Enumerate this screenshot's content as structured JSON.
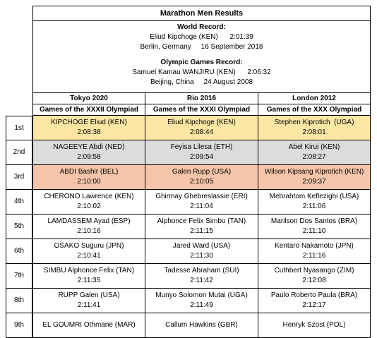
{
  "title": "Marathon Men Results",
  "world_record": {
    "heading": "World Record:",
    "line1": "Eliud Kipchoge (KEN)      2:01:39",
    "line2": "Berlin, Germany     16 September 2018"
  },
  "olympic_record": {
    "heading": "Olympic Games Record:",
    "line1": "Samuel Kamau WANJIRU (KEN)      2:06:32",
    "line2": "Beijing, China     24 August 2008"
  },
  "games": [
    {
      "name": "Tokyo 2020",
      "sub": "Games of the XXXII Olympiad"
    },
    {
      "name": "Rio 2016",
      "sub": "Games of the XXXI Olympiad"
    },
    {
      "name": "London 2012",
      "sub": "Games of the XXX Olympiad"
    }
  ],
  "rows": [
    {
      "place": "1st",
      "cells": [
        {
          "name": "KIPCHOGE Eliud (KEN)",
          "time": "2:08:38"
        },
        {
          "name": "Eliud Kipchoge (KEN)",
          "time": "2:08:44"
        },
        {
          "name": "Stephen Kiprotich  (UGA)",
          "time": "2:08:01"
        }
      ]
    },
    {
      "place": "2nd",
      "cells": [
        {
          "name": "NAGEEYE Abdi (NED)",
          "time": "2:09:58"
        },
        {
          "name": "Feyisa Lilesa (ETH)",
          "time": "2:09:54"
        },
        {
          "name": "Abel Kirui (KEN)",
          "time": "2:08:27"
        }
      ]
    },
    {
      "place": "3rd",
      "cells": [
        {
          "name": "ABDI Bashir (BEL)",
          "time": "2:10:00"
        },
        {
          "name": "Galen Rupp (USA)",
          "time": "2:10:05"
        },
        {
          "name": "Wilson Kipsang Kiprotich (KEN)",
          "time": "2:09:37"
        }
      ]
    },
    {
      "place": "4th",
      "cells": [
        {
          "name": "CHERONO Lawrence (KEN)",
          "time": "2:10:02"
        },
        {
          "name": "Ghirmay Ghebreslassie (ERI)",
          "time": "2:11:04"
        },
        {
          "name": "Mebrahtom Keflezighi (USA)",
          "time": "2:11:06"
        }
      ]
    },
    {
      "place": "5th",
      "cells": [
        {
          "name": "LAMDASSEM Ayad (ESP)",
          "time": "2:10:16"
        },
        {
          "name": "Alphonce Felix Simbu (TAN)",
          "time": "2:11:15"
        },
        {
          "name": "Marilson Dos Santos (BRA)",
          "time": "2:11:10"
        }
      ]
    },
    {
      "place": "6th",
      "cells": [
        {
          "name": "OSAKO Suguru (JPN)",
          "time": "2:10:41"
        },
        {
          "name": "Jared Ward (USA)",
          "time": "2:11:30"
        },
        {
          "name": "Kentaro Nakamoto (JPN)",
          "time": "2:11:16"
        }
      ]
    },
    {
      "place": "7th",
      "cells": [
        {
          "name": "SIMBU Alphonce Felix (TAN)",
          "time": "2:11:35"
        },
        {
          "name": "Tadesse Abraham (SUI)",
          "time": "2:11:42"
        },
        {
          "name": "Cuthbert Nyasango (ZIM)",
          "time": "2:12:08"
        }
      ]
    },
    {
      "place": "8th",
      "cells": [
        {
          "name": "RUPP Galen (USA)",
          "time": "2:11:41"
        },
        {
          "name": "Munyo Solomon Mutai (UGA)",
          "time": "2:11:49"
        },
        {
          "name": "Paulo Roberto Paula (BRA)",
          "time": "2:12:17"
        }
      ]
    },
    {
      "place": "9th",
      "cells": [
        {
          "name": "EL GOUMRI Othmane (MAR)",
          "time": ""
        },
        {
          "name": "Callum Hawkins (GBR)",
          "time": ""
        },
        {
          "name": "Henryk Szost (POL)",
          "time": ""
        }
      ]
    }
  ],
  "colors": {
    "gold": "#fce6a4",
    "silver": "#dcdcdc",
    "bronze": "#f6c5a9"
  }
}
